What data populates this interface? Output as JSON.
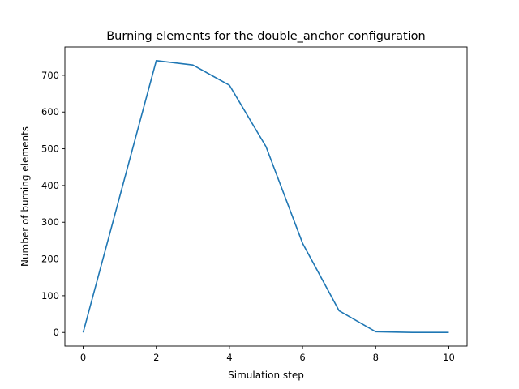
{
  "chart_data": {
    "type": "line",
    "title": "Burning elements for the double_anchor configuration",
    "xlabel": "Simulation step",
    "ylabel": "Number of burning elements",
    "xlim": [
      -0.5,
      10.5
    ],
    "ylim": [
      -37,
      777
    ],
    "xticks": [
      0,
      2,
      4,
      6,
      8,
      10
    ],
    "yticks": [
      0,
      100,
      200,
      300,
      400,
      500,
      600,
      700
    ],
    "grid": false,
    "series": [
      {
        "color": "#1f77b4",
        "x": [
          0,
          1,
          2,
          3,
          4,
          5,
          6,
          7,
          8,
          9,
          10
        ],
        "values": [
          0,
          370,
          740,
          728,
          673,
          506,
          243,
          59,
          2,
          0,
          0
        ]
      }
    ]
  }
}
